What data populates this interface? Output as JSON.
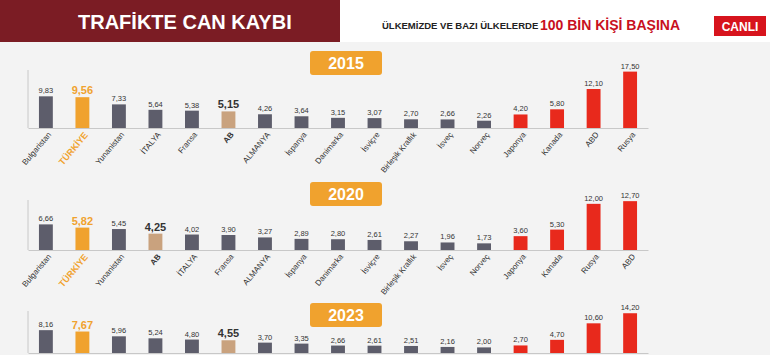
{
  "header": {
    "title": "TRAFİKTE CAN KAYBI",
    "subtitle": "ÜLKEMİZDE VE BAZI ÜLKELERDE",
    "highlight": "100 BİN KİŞİ BAŞINA",
    "badge": "CANLI"
  },
  "chart_data": [
    {
      "type": "bar",
      "title": "2015",
      "categories": [
        "Bulgaristan",
        "TÜRKİYE",
        "Yunanistan",
        "İTALYA",
        "Fransa",
        "AB",
        "ALMANYA",
        "İspanya",
        "Danimarka",
        "İsviçre",
        "Birleşik Krallık",
        "İsveç",
        "Norveç",
        "Japonya",
        "Kanada",
        "ABD",
        "Rusya"
      ],
      "values": [
        9.83,
        9.56,
        7.33,
        5.64,
        5.38,
        5.15,
        4.26,
        3.64,
        3.15,
        3.07,
        2.7,
        2.66,
        2.26,
        4.2,
        5.8,
        12.1,
        17.5
      ],
      "value_labels": [
        "9,83",
        "9,56",
        "7,33",
        "5,64",
        "5,38",
        "5,15",
        "4,26",
        "3,64",
        "3,15",
        "3,07",
        "2,70",
        "2,66",
        "2,26",
        "4,20",
        "5,80",
        "12,10",
        "17,50"
      ],
      "colors": [
        "#5d5d6b",
        "#f0a22e",
        "#5d5d6b",
        "#5d5d6b",
        "#5d5d6b",
        "#c9a27e",
        "#5d5d6b",
        "#5d5d6b",
        "#5d5d6b",
        "#5d5d6b",
        "#5d5d6b",
        "#5d5d6b",
        "#5d5d6b",
        "#e8291c",
        "#e8291c",
        "#e8291c",
        "#e8291c"
      ],
      "ylim": [
        0,
        18
      ],
      "data_labels": true,
      "tick_labels": "x"
    },
    {
      "type": "bar",
      "title": "2020",
      "categories": [
        "Bulgaristan",
        "TÜRKİYE",
        "Yunanistan",
        "AB",
        "İTALYA",
        "Fransa",
        "ALMANYA",
        "İspanya",
        "Danimarka",
        "İsviçre",
        "Birleşik Krallık",
        "İsveç",
        "Norveç",
        "Japonya",
        "Kanada",
        "Rusya",
        "ABD"
      ],
      "values": [
        6.66,
        5.82,
        5.45,
        4.25,
        4.02,
        3.9,
        3.27,
        2.89,
        2.8,
        2.61,
        2.27,
        1.96,
        1.73,
        3.6,
        5.3,
        12.0,
        12.7
      ],
      "value_labels": [
        "6,66",
        "5,82",
        "5,45",
        "4,25",
        "4,02",
        "3,90",
        "3,27",
        "2,89",
        "2,80",
        "2,61",
        "2,27",
        "1,96",
        "1,73",
        "3,60",
        "5,30",
        "12,00",
        "12,70"
      ],
      "colors": [
        "#5d5d6b",
        "#f0a22e",
        "#5d5d6b",
        "#c9a27e",
        "#5d5d6b",
        "#5d5d6b",
        "#5d5d6b",
        "#5d5d6b",
        "#5d5d6b",
        "#5d5d6b",
        "#5d5d6b",
        "#5d5d6b",
        "#5d5d6b",
        "#e8291c",
        "#e8291c",
        "#e8291c",
        "#e8291c"
      ],
      "ylim": [
        0,
        13
      ],
      "data_labels": true,
      "tick_labels": "x"
    },
    {
      "type": "bar",
      "title": "2023",
      "categories": [
        null,
        null,
        null,
        null,
        null,
        null,
        null,
        null,
        null,
        null,
        null,
        null,
        null,
        null,
        null,
        null,
        null
      ],
      "values": [
        8.16,
        7.67,
        5.96,
        5.24,
        4.8,
        4.55,
        3.7,
        3.35,
        2.66,
        2.61,
        2.51,
        2.16,
        2.0,
        2.7,
        4.7,
        10.6,
        14.2
      ],
      "value_labels": [
        "8,16",
        "7,67",
        "5,96",
        "5,24",
        "4,80",
        "4,55",
        "3,70",
        "3,35",
        "2,66",
        "2,61",
        "2,51",
        "2,16",
        "2,00",
        "2,70",
        "4,70",
        "10,60",
        "14,20"
      ],
      "colors": [
        "#5d5d6b",
        "#f0a22e",
        "#5d5d6b",
        "#5d5d6b",
        "#5d5d6b",
        "#c9a27e",
        "#5d5d6b",
        "#5d5d6b",
        "#5d5d6b",
        "#5d5d6b",
        "#5d5d6b",
        "#5d5d6b",
        "#5d5d6b",
        "#e8291c",
        "#e8291c",
        "#e8291c",
        "#e8291c"
      ],
      "ylim": [
        0,
        15
      ],
      "data_labels": true,
      "tick_labels": false
    }
  ]
}
